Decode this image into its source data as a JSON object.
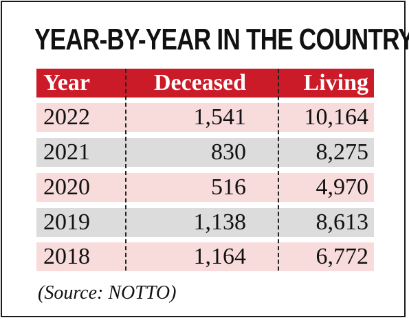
{
  "title": "YEAR-BY-YEAR IN THE COUNTRY",
  "table": {
    "headers": [
      "Year",
      "Deceased",
      "Living"
    ],
    "rows": [
      [
        "2022",
        "1,541",
        "10,164"
      ],
      [
        "2021",
        "830",
        "8,275"
      ],
      [
        "2020",
        "516",
        "4,970"
      ],
      [
        "2019",
        "1,138",
        "8,613"
      ],
      [
        "2018",
        "1,164",
        "6,772"
      ]
    ]
  },
  "source": "(Source: NOTTO)",
  "colors": {
    "header_bg": "#cc1b28",
    "row_pink": "#f8dcdc",
    "row_grey": "#dcdcdc",
    "text": "#111111"
  }
}
